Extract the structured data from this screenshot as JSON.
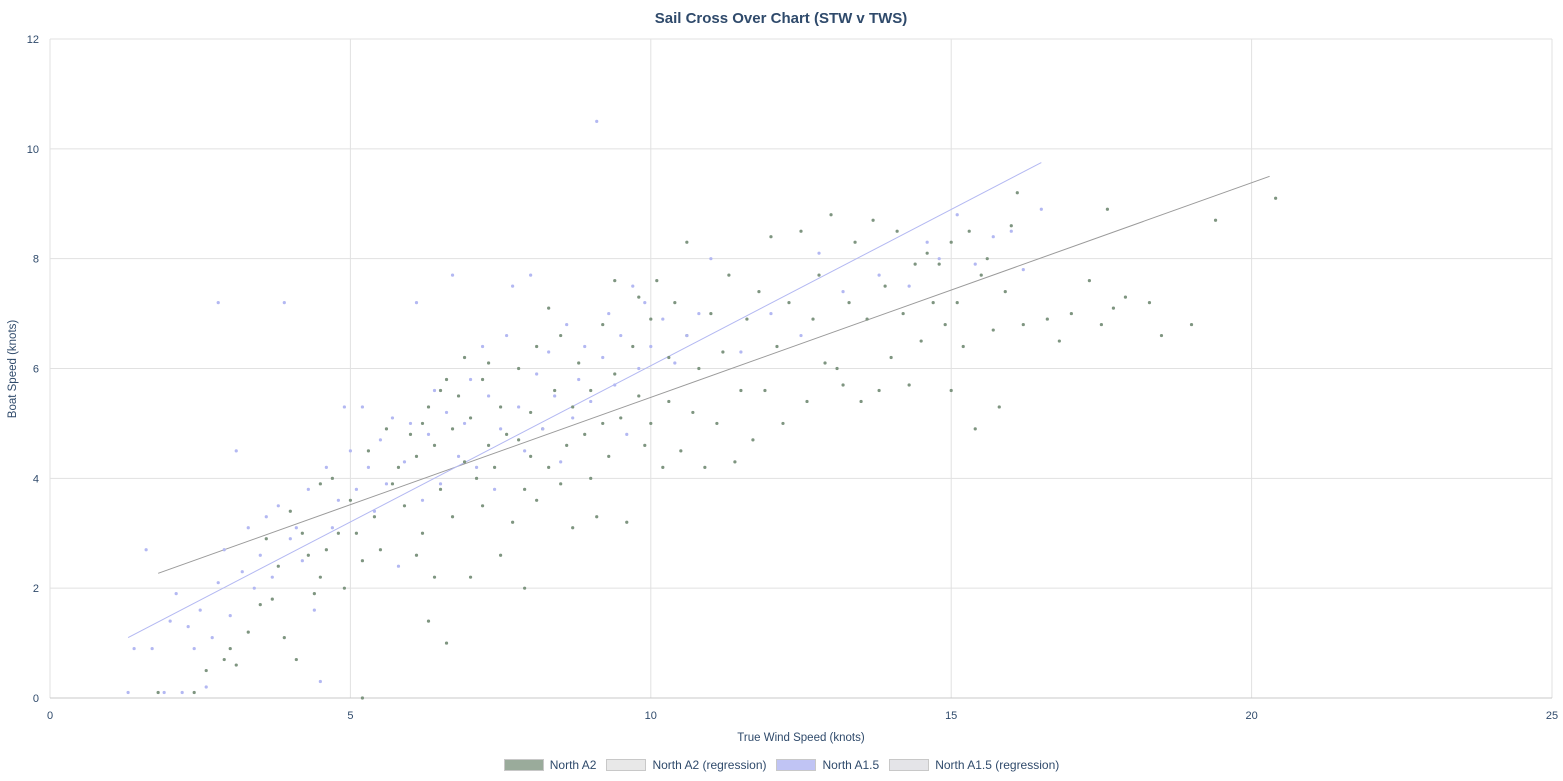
{
  "chart_data": {
    "type": "scatter",
    "title": "Sail Cross Over Chart (STW v TWS)",
    "xlabel": "True Wind Speed (knots)",
    "ylabel": "Boat Speed (knots)",
    "xlim": [
      0,
      25
    ],
    "ylim": [
      0,
      12
    ],
    "x_ticks": [
      "0",
      "5",
      "10",
      "15",
      "20",
      "25"
    ],
    "y_ticks": [
      "0",
      "2",
      "4",
      "6",
      "8",
      "10",
      "12"
    ],
    "grid": true,
    "legend_position": "bottom-center",
    "series": [
      {
        "name": "North A2",
        "kind": "scatter",
        "color": "#7e9580",
        "points": [
          [
            1.8,
            0.1
          ],
          [
            2.4,
            0.1
          ],
          [
            2.6,
            0.5
          ],
          [
            2.9,
            0.7
          ],
          [
            3.0,
            0.9
          ],
          [
            3.1,
            0.6
          ],
          [
            3.3,
            1.2
          ],
          [
            3.5,
            1.7
          ],
          [
            3.6,
            2.9
          ],
          [
            3.7,
            1.8
          ],
          [
            3.8,
            2.4
          ],
          [
            3.9,
            1.1
          ],
          [
            4.0,
            3.4
          ],
          [
            4.1,
            0.7
          ],
          [
            4.2,
            3.0
          ],
          [
            4.3,
            2.6
          ],
          [
            4.4,
            1.9
          ],
          [
            4.5,
            3.9
          ],
          [
            4.5,
            2.2
          ],
          [
            4.6,
            2.7
          ],
          [
            4.7,
            4.0
          ],
          [
            4.8,
            3.0
          ],
          [
            4.9,
            2.0
          ],
          [
            5.0,
            3.6
          ],
          [
            5.1,
            3.0
          ],
          [
            5.2,
            2.5
          ],
          [
            5.3,
            4.5
          ],
          [
            5.4,
            3.3
          ],
          [
            5.5,
            2.7
          ],
          [
            5.6,
            4.9
          ],
          [
            5.7,
            3.9
          ],
          [
            5.8,
            4.2
          ],
          [
            5.9,
            3.5
          ],
          [
            6.0,
            4.8
          ],
          [
            6.1,
            4.4
          ],
          [
            6.1,
            2.6
          ],
          [
            6.2,
            5.0
          ],
          [
            6.2,
            3.0
          ],
          [
            6.3,
            5.3
          ],
          [
            6.3,
            1.4
          ],
          [
            6.4,
            4.6
          ],
          [
            6.4,
            2.2
          ],
          [
            6.5,
            5.6
          ],
          [
            6.5,
            3.8
          ],
          [
            6.6,
            1.0
          ],
          [
            6.6,
            5.8
          ],
          [
            6.7,
            4.9
          ],
          [
            6.7,
            3.3
          ],
          [
            6.8,
            5.5
          ],
          [
            6.9,
            4.3
          ],
          [
            6.9,
            6.2
          ],
          [
            7.0,
            5.1
          ],
          [
            7.0,
            2.2
          ],
          [
            7.1,
            4.0
          ],
          [
            7.2,
            5.8
          ],
          [
            7.2,
            3.5
          ],
          [
            7.3,
            4.6
          ],
          [
            7.3,
            6.1
          ],
          [
            7.4,
            4.2
          ],
          [
            7.5,
            5.3
          ],
          [
            7.5,
            2.6
          ],
          [
            7.6,
            4.8
          ],
          [
            7.7,
            3.2
          ],
          [
            7.8,
            4.7
          ],
          [
            7.8,
            6.0
          ],
          [
            7.9,
            3.8
          ],
          [
            7.9,
            2.0
          ],
          [
            8.0,
            5.2
          ],
          [
            8.0,
            4.4
          ],
          [
            8.1,
            6.4
          ],
          [
            8.1,
            3.6
          ],
          [
            8.2,
            4.9
          ],
          [
            8.3,
            7.1
          ],
          [
            8.3,
            4.2
          ],
          [
            8.4,
            5.6
          ],
          [
            8.5,
            3.9
          ],
          [
            8.5,
            6.6
          ],
          [
            8.6,
            4.6
          ],
          [
            8.7,
            3.1
          ],
          [
            8.7,
            5.3
          ],
          [
            8.8,
            6.1
          ],
          [
            8.9,
            4.8
          ],
          [
            9.0,
            4.0
          ],
          [
            9.0,
            5.6
          ],
          [
            9.1,
            3.3
          ],
          [
            9.2,
            6.8
          ],
          [
            9.2,
            5.0
          ],
          [
            9.3,
            4.4
          ],
          [
            9.4,
            7.6
          ],
          [
            9.4,
            5.9
          ],
          [
            9.5,
            5.1
          ],
          [
            9.6,
            3.2
          ],
          [
            9.7,
            6.4
          ],
          [
            9.8,
            5.5
          ],
          [
            9.8,
            7.3
          ],
          [
            9.9,
            4.6
          ],
          [
            10.0,
            6.9
          ],
          [
            10.0,
            5.0
          ],
          [
            10.1,
            7.6
          ],
          [
            10.2,
            4.2
          ],
          [
            10.3,
            6.2
          ],
          [
            10.3,
            5.4
          ],
          [
            10.4,
            7.2
          ],
          [
            10.5,
            4.5
          ],
          [
            10.6,
            6.6
          ],
          [
            10.6,
            8.3
          ],
          [
            10.7,
            5.2
          ],
          [
            10.8,
            6.0
          ],
          [
            10.9,
            4.2
          ],
          [
            11.0,
            7.0
          ],
          [
            11.1,
            5.0
          ],
          [
            11.2,
            6.3
          ],
          [
            11.3,
            7.7
          ],
          [
            11.4,
            4.3
          ],
          [
            11.5,
            5.6
          ],
          [
            11.6,
            6.9
          ],
          [
            11.7,
            4.7
          ],
          [
            11.8,
            7.4
          ],
          [
            11.9,
            5.6
          ],
          [
            12.0,
            8.4
          ],
          [
            12.1,
            6.4
          ],
          [
            12.2,
            5.0
          ],
          [
            12.3,
            7.2
          ],
          [
            12.5,
            8.5
          ],
          [
            12.6,
            5.4
          ],
          [
            12.7,
            6.9
          ],
          [
            12.8,
            7.7
          ],
          [
            12.9,
            6.1
          ],
          [
            13.0,
            8.8
          ],
          [
            13.1,
            6.0
          ],
          [
            13.2,
            5.7
          ],
          [
            13.3,
            7.2
          ],
          [
            13.4,
            8.3
          ],
          [
            13.5,
            5.4
          ],
          [
            13.6,
            6.9
          ],
          [
            13.7,
            8.7
          ],
          [
            13.8,
            5.6
          ],
          [
            13.9,
            7.5
          ],
          [
            14.0,
            6.2
          ],
          [
            14.1,
            8.5
          ],
          [
            14.2,
            7.0
          ],
          [
            14.3,
            5.7
          ],
          [
            14.4,
            7.9
          ],
          [
            14.5,
            6.5
          ],
          [
            14.6,
            8.1
          ],
          [
            14.7,
            7.2
          ],
          [
            14.8,
            7.9
          ],
          [
            14.9,
            6.8
          ],
          [
            15.0,
            5.6
          ],
          [
            15.0,
            8.3
          ],
          [
            15.1,
            7.2
          ],
          [
            15.2,
            6.4
          ],
          [
            15.3,
            8.5
          ],
          [
            15.4,
            4.9
          ],
          [
            15.5,
            7.7
          ],
          [
            15.6,
            8.0
          ],
          [
            15.7,
            6.7
          ],
          [
            15.8,
            5.3
          ],
          [
            15.9,
            7.4
          ],
          [
            16.0,
            8.6
          ],
          [
            16.1,
            9.2
          ],
          [
            16.2,
            6.8
          ],
          [
            16.6,
            6.9
          ],
          [
            16.8,
            6.5
          ],
          [
            17.0,
            7.0
          ],
          [
            17.3,
            7.6
          ],
          [
            17.5,
            6.8
          ],
          [
            17.6,
            8.9
          ],
          [
            17.7,
            7.1
          ],
          [
            17.9,
            7.3
          ],
          [
            18.3,
            7.2
          ],
          [
            18.5,
            6.6
          ],
          [
            19.0,
            6.8
          ],
          [
            19.4,
            8.7
          ],
          [
            20.4,
            9.1
          ],
          [
            5.2,
            0.0
          ]
        ]
      },
      {
        "name": "North A2 (regression)",
        "kind": "line",
        "color": "#9a9a9a",
        "points": [
          [
            1.8,
            2.27
          ],
          [
            20.3,
            9.5
          ]
        ]
      },
      {
        "name": "North A1.5",
        "kind": "scatter",
        "color": "#b3b8f2",
        "points": [
          [
            1.3,
            0.1
          ],
          [
            1.4,
            0.9
          ],
          [
            1.6,
            2.7
          ],
          [
            1.7,
            0.9
          ],
          [
            1.9,
            0.1
          ],
          [
            2.0,
            1.4
          ],
          [
            2.1,
            1.9
          ],
          [
            2.2,
            0.1
          ],
          [
            2.3,
            1.3
          ],
          [
            2.4,
            0.9
          ],
          [
            2.5,
            1.6
          ],
          [
            2.6,
            0.2
          ],
          [
            2.7,
            1.1
          ],
          [
            2.8,
            7.2
          ],
          [
            2.8,
            2.1
          ],
          [
            2.9,
            2.7
          ],
          [
            3.0,
            1.5
          ],
          [
            3.1,
            4.5
          ],
          [
            3.2,
            2.3
          ],
          [
            3.3,
            3.1
          ],
          [
            3.4,
            2.0
          ],
          [
            3.5,
            2.6
          ],
          [
            3.6,
            3.3
          ],
          [
            3.7,
            2.2
          ],
          [
            3.8,
            3.5
          ],
          [
            3.9,
            7.2
          ],
          [
            4.0,
            2.9
          ],
          [
            4.1,
            3.1
          ],
          [
            4.2,
            2.5
          ],
          [
            4.3,
            3.8
          ],
          [
            4.4,
            1.6
          ],
          [
            4.5,
            0.3
          ],
          [
            4.6,
            4.2
          ],
          [
            4.7,
            3.1
          ],
          [
            4.8,
            3.6
          ],
          [
            4.9,
            5.3
          ],
          [
            5.0,
            4.5
          ],
          [
            5.1,
            3.8
          ],
          [
            5.2,
            5.3
          ],
          [
            5.3,
            4.2
          ],
          [
            5.4,
            3.4
          ],
          [
            5.5,
            4.7
          ],
          [
            5.6,
            3.9
          ],
          [
            5.7,
            5.1
          ],
          [
            5.8,
            2.4
          ],
          [
            5.9,
            4.3
          ],
          [
            6.0,
            5.0
          ],
          [
            6.1,
            7.2
          ],
          [
            6.2,
            3.6
          ],
          [
            6.3,
            4.8
          ],
          [
            6.4,
            5.6
          ],
          [
            6.5,
            3.9
          ],
          [
            6.6,
            5.2
          ],
          [
            6.7,
            7.7
          ],
          [
            6.8,
            4.4
          ],
          [
            6.9,
            5.0
          ],
          [
            7.0,
            5.8
          ],
          [
            7.1,
            4.2
          ],
          [
            7.2,
            6.4
          ],
          [
            7.3,
            5.5
          ],
          [
            7.4,
            3.8
          ],
          [
            7.5,
            4.9
          ],
          [
            7.6,
            6.6
          ],
          [
            7.7,
            7.5
          ],
          [
            7.8,
            5.3
          ],
          [
            7.9,
            4.5
          ],
          [
            8.0,
            7.7
          ],
          [
            8.1,
            5.9
          ],
          [
            8.2,
            4.9
          ],
          [
            8.3,
            6.3
          ],
          [
            8.4,
            5.5
          ],
          [
            8.5,
            4.3
          ],
          [
            8.6,
            6.8
          ],
          [
            8.7,
            5.1
          ],
          [
            8.8,
            5.8
          ],
          [
            8.9,
            6.4
          ],
          [
            9.0,
            5.4
          ],
          [
            9.1,
            10.5
          ],
          [
            9.2,
            6.2
          ],
          [
            9.3,
            7.0
          ],
          [
            9.4,
            5.7
          ],
          [
            9.5,
            6.6
          ],
          [
            9.6,
            4.8
          ],
          [
            9.7,
            7.5
          ],
          [
            9.8,
            6.0
          ],
          [
            9.9,
            7.2
          ],
          [
            10.0,
            6.4
          ],
          [
            10.2,
            6.9
          ],
          [
            10.4,
            6.1
          ],
          [
            10.6,
            6.6
          ],
          [
            10.8,
            7.0
          ],
          [
            11.0,
            8.0
          ],
          [
            11.5,
            6.3
          ],
          [
            12.0,
            7.0
          ],
          [
            12.5,
            6.6
          ],
          [
            12.8,
            8.1
          ],
          [
            13.2,
            7.4
          ],
          [
            13.8,
            7.7
          ],
          [
            14.3,
            7.5
          ],
          [
            14.6,
            8.3
          ],
          [
            14.8,
            8.0
          ],
          [
            15.1,
            8.8
          ],
          [
            15.4,
            7.9
          ],
          [
            15.7,
            8.4
          ],
          [
            16.0,
            8.5
          ],
          [
            16.2,
            7.8
          ],
          [
            16.5,
            8.9
          ]
        ]
      },
      {
        "name": "North A1.5 (regression)",
        "kind": "line",
        "color": "#b3b8f2",
        "points": [
          [
            1.3,
            1.1
          ],
          [
            16.5,
            9.75
          ]
        ]
      }
    ]
  },
  "legend": [
    {
      "label": "North A2",
      "swatch": "#9aab9b"
    },
    {
      "label": "North A2 (regression)",
      "swatch": "#e8e8e8"
    },
    {
      "label": "North A1.5",
      "swatch": "#c0c4f4"
    },
    {
      "label": "North A1.5 (regression)",
      "swatch": "#e4e4e8"
    }
  ]
}
